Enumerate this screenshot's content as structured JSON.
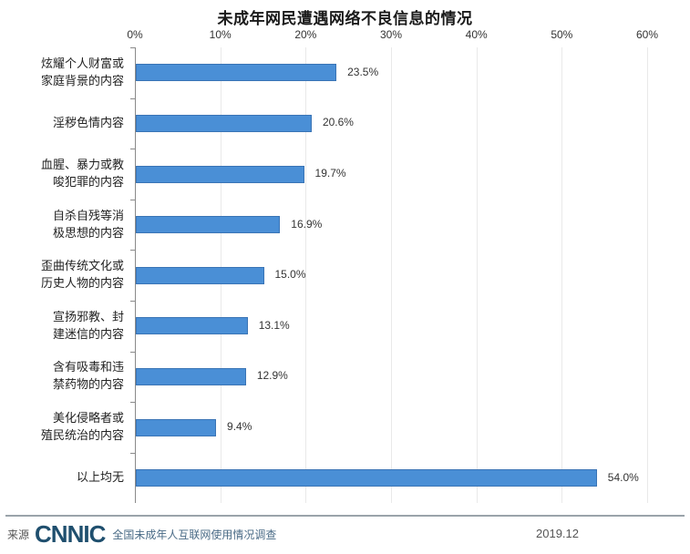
{
  "chart_data": {
    "type": "bar",
    "orientation": "horizontal",
    "title": "未成年网民遭遇网络不良信息的情况",
    "xlabel": "",
    "ylabel": "",
    "xlim": [
      0,
      60
    ],
    "x_ticks": [
      "0%",
      "10%",
      "20%",
      "30%",
      "40%",
      "50%",
      "60%"
    ],
    "grid": true,
    "categories": [
      "炫耀个人财富或家庭背景的内容",
      "淫秽色情内容",
      "血腥、暴力或教唆犯罪的内容",
      "自杀自残等消极思想的内容",
      "歪曲传统文化或历史人物的内容",
      "宣扬邪教、封建迷信的内容",
      "含有吸毒和违禁药物的内容",
      "美化侵略者或殖民统治的内容",
      "以上均无"
    ],
    "values": [
      23.5,
      20.6,
      19.7,
      16.9,
      15.0,
      13.1,
      12.9,
      9.4,
      54.0
    ],
    "value_labels": [
      "23.5%",
      "20.6%",
      "19.7%",
      "16.9%",
      "15.0%",
      "13.1%",
      "12.9%",
      "9.4%",
      "54.0%"
    ],
    "label_lines": [
      [
        "炫耀个人财富或",
        "家庭背景的内容"
      ],
      [
        "淫秽色情内容"
      ],
      [
        "血腥、暴力或教",
        "唆犯罪的内容"
      ],
      [
        "自杀自残等消",
        "极思想的内容"
      ],
      [
        "歪曲传统文化或",
        "历史人物的内容"
      ],
      [
        "宣扬邪教、封",
        "建迷信的内容"
      ],
      [
        "含有吸毒和违",
        "禁药物的内容"
      ],
      [
        "美化侵略者或",
        "殖民统治的内容"
      ],
      [
        "以上均无"
      ]
    ],
    "bar_color": "#4a8fd6",
    "legend": null
  },
  "footer": {
    "source_label": "来源",
    "logo_text": "CNNIC",
    "survey_name": "全国未成年人互联网使用情况调查",
    "date": "2019.12"
  }
}
